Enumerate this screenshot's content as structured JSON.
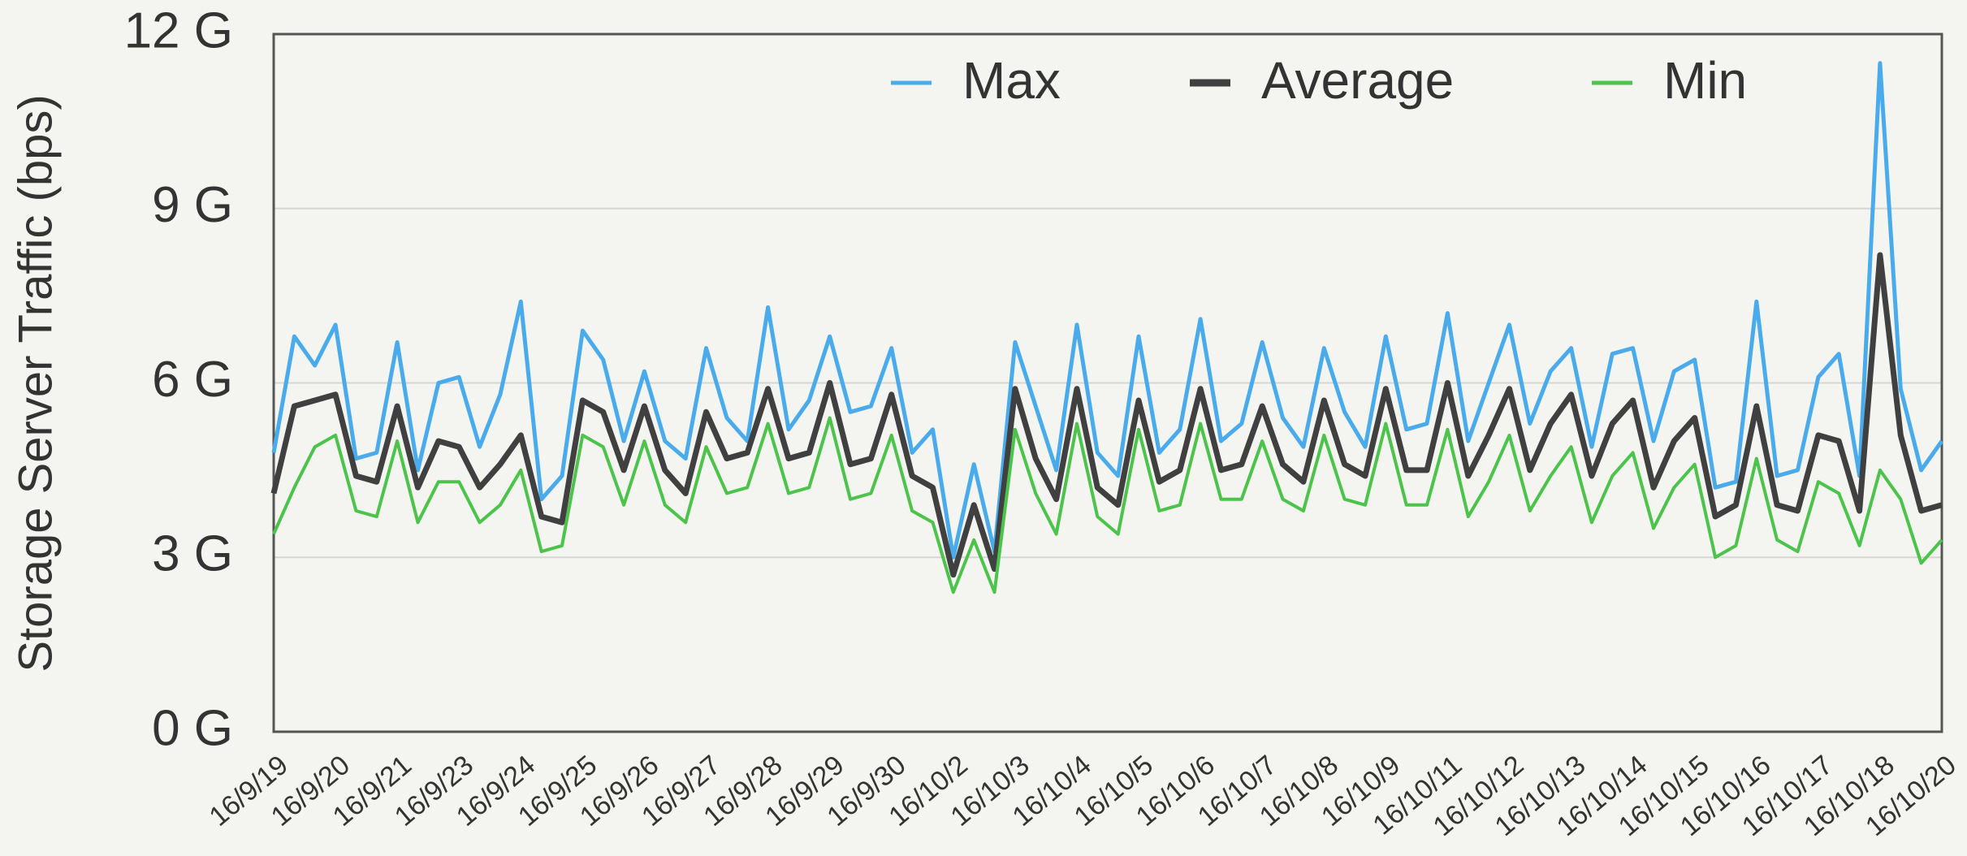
{
  "chart_data": {
    "type": "line",
    "y_label": "Storage Server Traffic (bps)",
    "categories": [
      "16/9/19",
      null,
      null,
      "16/9/20",
      null,
      null,
      "16/9/21",
      null,
      null,
      "16/9/23",
      null,
      null,
      "16/9/24",
      null,
      null,
      "16/9/25",
      null,
      null,
      "16/9/26",
      null,
      null,
      "16/9/27",
      null,
      null,
      "16/9/28",
      null,
      null,
      "16/9/29",
      null,
      null,
      "16/9/30",
      null,
      null,
      "16/10/2",
      null,
      null,
      "16/10/3",
      null,
      null,
      "16/10/4",
      null,
      null,
      "16/10/5",
      null,
      null,
      "16/10/6",
      null,
      null,
      "16/10/7",
      null,
      null,
      "16/10/8",
      null,
      null,
      "16/10/9",
      null,
      null,
      "16/10/11",
      null,
      null,
      "16/10/12",
      null,
      null,
      "16/10/13",
      null,
      null,
      "16/10/14",
      null,
      null,
      "16/10/15",
      null,
      null,
      "16/10/16",
      null,
      null,
      "16/10/17",
      null,
      null,
      "16/10/18",
      null,
      null,
      "16/10/20"
    ],
    "series": [
      {
        "name": "Max",
        "color": "#4aabec",
        "values": [
          4.8,
          6.8,
          6.3,
          7.0,
          4.7,
          4.8,
          6.7,
          4.5,
          6.0,
          6.1,
          4.9,
          5.8,
          7.4,
          4.0,
          4.4,
          6.9,
          6.4,
          5.0,
          6.2,
          5.0,
          4.7,
          6.6,
          5.4,
          5.0,
          7.3,
          5.2,
          5.7,
          6.8,
          5.5,
          5.6,
          6.6,
          4.8,
          5.2,
          3.0,
          4.6,
          3.1,
          6.7,
          5.6,
          4.5,
          7.0,
          4.8,
          4.4,
          6.8,
          4.8,
          5.2,
          7.1,
          5.0,
          5.3,
          6.7,
          5.4,
          4.9,
          6.6,
          5.5,
          4.9,
          6.8,
          5.2,
          5.3,
          7.2,
          5.0,
          6.0,
          7.0,
          5.3,
          6.2,
          6.6,
          4.9,
          6.5,
          6.6,
          5.0,
          6.2,
          6.4,
          4.2,
          4.3,
          7.4,
          4.4,
          4.5,
          6.1,
          6.5,
          4.4,
          11.5,
          5.9,
          4.5,
          5.0
        ]
      },
      {
        "name": "Average",
        "color": "#404040",
        "values": [
          4.1,
          5.6,
          5.7,
          5.8,
          4.4,
          4.3,
          5.6,
          4.2,
          5.0,
          4.9,
          4.2,
          4.6,
          5.1,
          3.7,
          3.6,
          5.7,
          5.5,
          4.5,
          5.6,
          4.5,
          4.1,
          5.5,
          4.7,
          4.8,
          5.9,
          4.7,
          4.8,
          6.0,
          4.6,
          4.7,
          5.8,
          4.4,
          4.2,
          2.7,
          3.9,
          2.8,
          5.9,
          4.7,
          4.0,
          5.9,
          4.2,
          3.9,
          5.7,
          4.3,
          4.5,
          5.9,
          4.5,
          4.6,
          5.6,
          4.6,
          4.3,
          5.7,
          4.6,
          4.4,
          5.9,
          4.5,
          4.5,
          6.0,
          4.4,
          5.1,
          5.9,
          4.5,
          5.3,
          5.8,
          4.4,
          5.3,
          5.7,
          4.2,
          5.0,
          5.4,
          3.7,
          3.9,
          5.6,
          3.9,
          3.8,
          5.1,
          5.0,
          3.8,
          8.2,
          5.1,
          3.8,
          3.9
        ]
      },
      {
        "name": "Min",
        "color": "#4cc44c",
        "values": [
          3.4,
          4.2,
          4.9,
          5.1,
          3.8,
          3.7,
          5.0,
          3.6,
          4.3,
          4.3,
          3.6,
          3.9,
          4.5,
          3.1,
          3.2,
          5.1,
          4.9,
          3.9,
          5.0,
          3.9,
          3.6,
          4.9,
          4.1,
          4.2,
          5.3,
          4.1,
          4.2,
          5.4,
          4.0,
          4.1,
          5.1,
          3.8,
          3.6,
          2.4,
          3.3,
          2.4,
          5.2,
          4.1,
          3.4,
          5.3,
          3.7,
          3.4,
          5.2,
          3.8,
          3.9,
          5.3,
          4.0,
          4.0,
          5.0,
          4.0,
          3.8,
          5.1,
          4.0,
          3.9,
          5.3,
          3.9,
          3.9,
          5.2,
          3.7,
          4.3,
          5.1,
          3.8,
          4.4,
          4.9,
          3.6,
          4.4,
          4.8,
          3.5,
          4.2,
          4.6,
          3.0,
          3.2,
          4.7,
          3.3,
          3.1,
          4.3,
          4.1,
          3.2,
          4.5,
          4.0,
          2.9,
          3.3
        ]
      }
    ],
    "ylim": [
      0,
      12
    ],
    "yticks": [
      {
        "value": 0,
        "label": "0 G"
      },
      {
        "value": 3,
        "label": "3 G"
      },
      {
        "value": 6,
        "label": "6 G"
      },
      {
        "value": 9,
        "label": "9 G"
      },
      {
        "value": 12,
        "label": "12 G"
      }
    ],
    "grid": true,
    "legend": "top"
  }
}
